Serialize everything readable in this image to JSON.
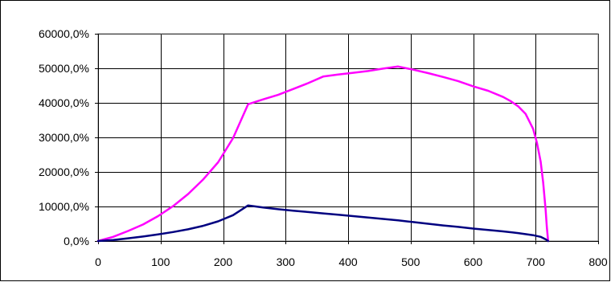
{
  "chart_data": {
    "type": "line",
    "title": "",
    "xlabel": "",
    "ylabel": "",
    "xlim": [
      0,
      800
    ],
    "ylim": [
      0,
      60000
    ],
    "x_ticks": [
      0,
      100,
      200,
      300,
      400,
      500,
      600,
      700,
      800
    ],
    "x_tick_labels": [
      "0",
      "100",
      "200",
      "300",
      "400",
      "500",
      "600",
      "700",
      "800"
    ],
    "y_ticks": [
      0,
      10000,
      20000,
      30000,
      40000,
      50000,
      60000
    ],
    "y_tick_labels": [
      "0,0%",
      "10000,0%",
      "20000,0%",
      "30000,0%",
      "40000,0%",
      "50000,0%",
      "60000,0%"
    ],
    "grid": true,
    "legend": "none",
    "series": [
      {
        "color": "#ff00ff",
        "x": [
          0,
          24,
          48,
          72,
          96,
          120,
          144,
          168,
          192,
          216,
          240,
          264,
          288,
          312,
          336,
          360,
          384,
          408,
          432,
          456,
          480,
          504,
          528,
          552,
          576,
          600,
          624,
          648,
          660,
          672,
          684,
          696,
          702,
          708,
          712,
          716,
          718,
          720
        ],
        "values": [
          0,
          1200,
          2900,
          4800,
          7200,
          10100,
          13600,
          17800,
          22800,
          29800,
          39600,
          41000,
          42300,
          44000,
          45700,
          47600,
          48200,
          48700,
          49200,
          49900,
          50500,
          49600,
          48600,
          47500,
          46300,
          44800,
          43500,
          41700,
          40500,
          39000,
          36800,
          32500,
          28500,
          23000,
          17000,
          9000,
          4000,
          0
        ]
      },
      {
        "color": "#000080",
        "x": [
          0,
          24,
          48,
          72,
          96,
          120,
          144,
          168,
          192,
          216,
          240,
          264,
          288,
          312,
          336,
          360,
          384,
          408,
          432,
          456,
          480,
          504,
          528,
          552,
          576,
          600,
          624,
          648,
          672,
          696,
          708,
          716,
          720
        ],
        "values": [
          0,
          300,
          800,
          1300,
          1900,
          2600,
          3400,
          4400,
          5700,
          7500,
          10300,
          9700,
          9200,
          8800,
          8400,
          8000,
          7600,
          7200,
          6800,
          6400,
          6000,
          5500,
          5000,
          4500,
          4100,
          3600,
          3200,
          2800,
          2300,
          1700,
          1200,
          500,
          0
        ]
      }
    ]
  }
}
